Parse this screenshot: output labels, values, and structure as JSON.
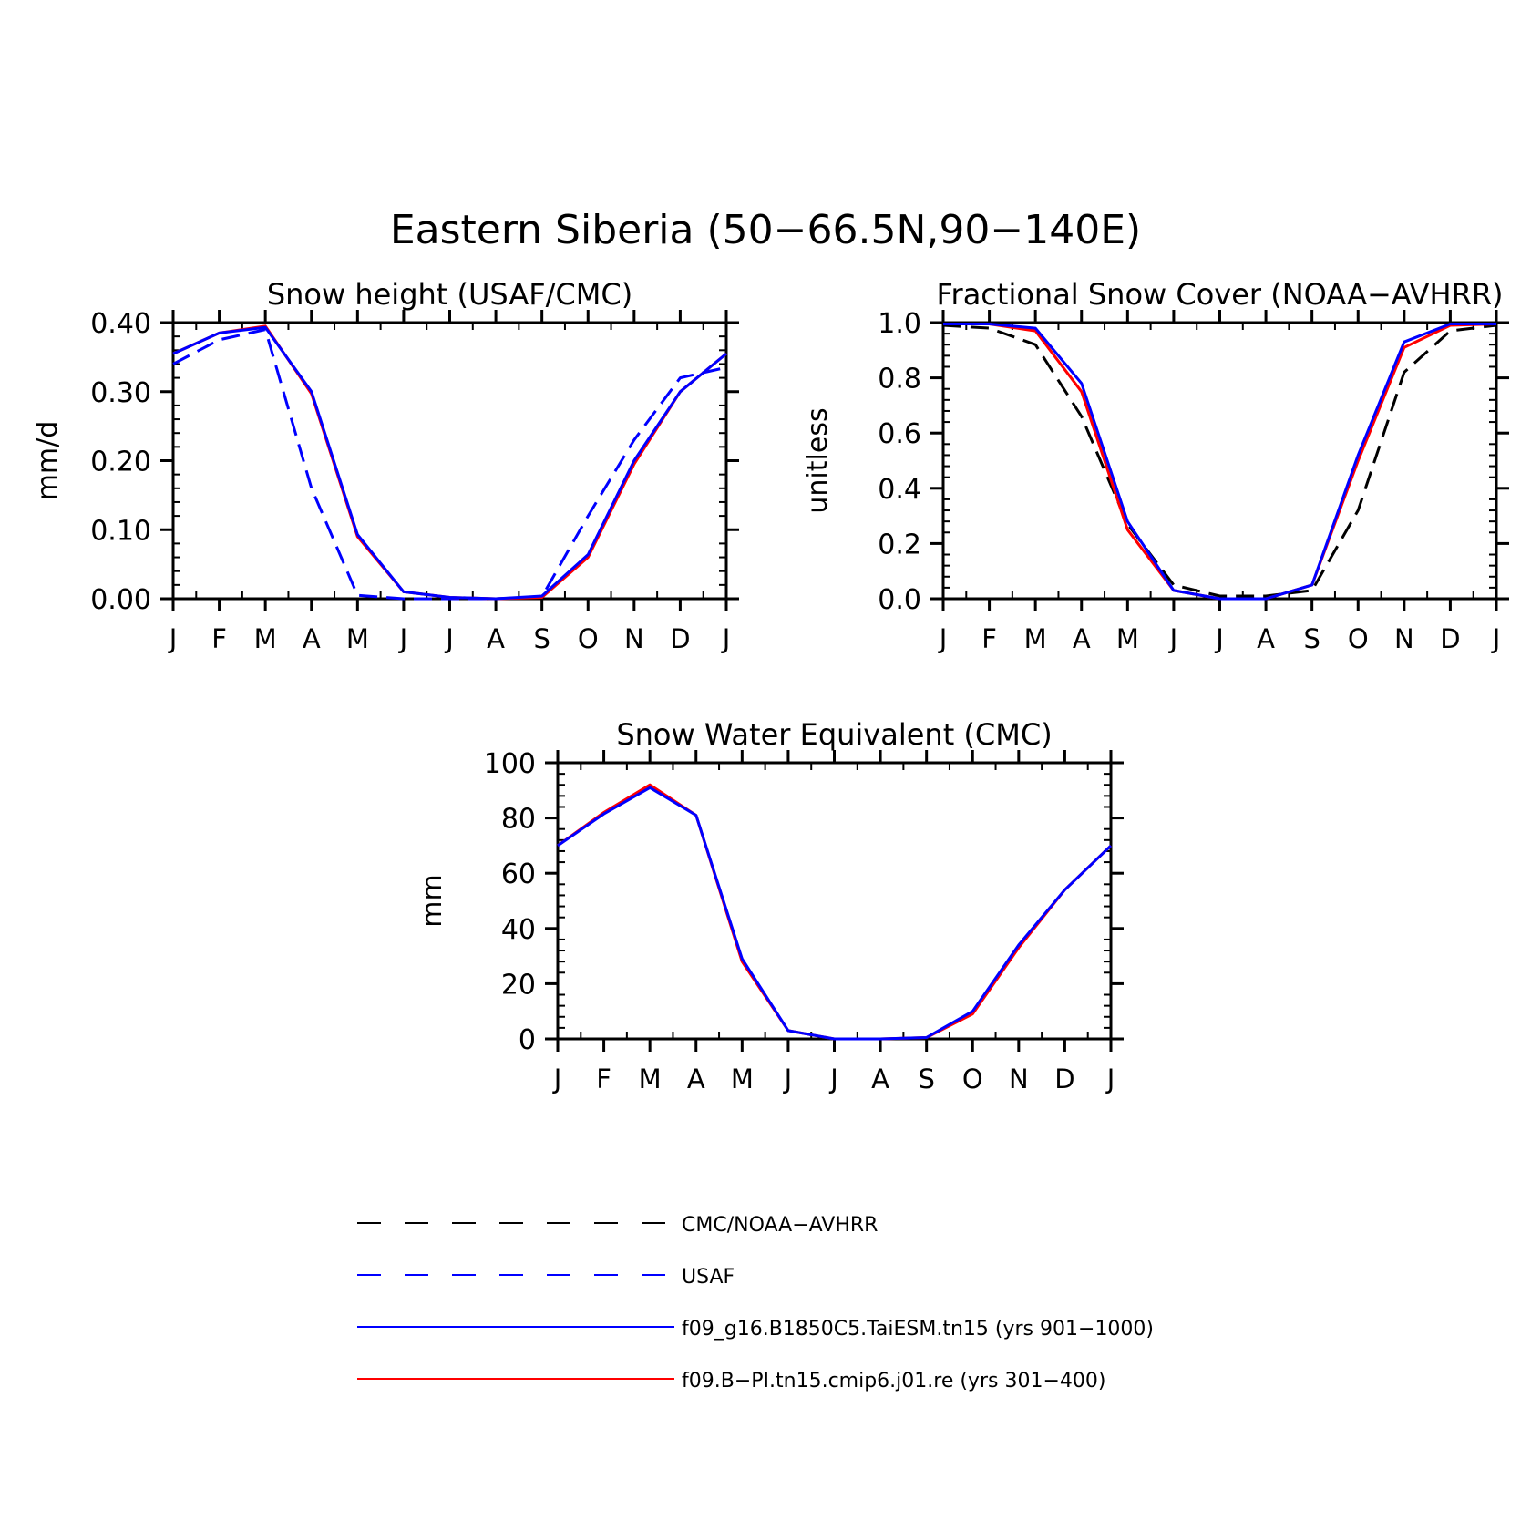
{
  "figure_title": "Eastern Siberia (50−66.5N,90−140E)",
  "colors": {
    "blue": "#0000ff",
    "red": "#ff0000",
    "black": "#000000"
  },
  "month_labels": [
    "J",
    "F",
    "M",
    "A",
    "M",
    "J",
    "J",
    "A",
    "S",
    "O",
    "N",
    "D",
    "J"
  ],
  "legend": [
    {
      "label": "CMC/NOAA−AVHRR",
      "color": "#000000",
      "style": "dashed"
    },
    {
      "label": "USAF",
      "color": "#0000ff",
      "style": "dashed"
    },
    {
      "label": "f09_g16.B1850C5.TaiESM.tn15 (yrs 901−1000)",
      "color": "#0000ff",
      "style": "solid"
    },
    {
      "label": "f09.B−PI.tn15.cmip6.j01.re (yrs 301−400)",
      "color": "#ff0000",
      "style": "solid"
    }
  ],
  "chart_data": [
    {
      "type": "line",
      "title": "Snow height (USAF/CMC)",
      "ylabel": "mm/d",
      "ylim": [
        0,
        0.4
      ],
      "yticks": [
        "0.00",
        "0.10",
        "0.20",
        "0.30",
        "0.40"
      ],
      "x": [
        "J",
        "F",
        "M",
        "A",
        "M",
        "J",
        "J",
        "A",
        "S",
        "O",
        "N",
        "D",
        "J"
      ],
      "series": [
        {
          "color": "#0000ff",
          "style": "dashed",
          "values": [
            0.34,
            0.375,
            0.39,
            0.16,
            0.005,
            0.0,
            0.0,
            0.0,
            0.003,
            0.12,
            0.23,
            0.32,
            0.335
          ]
        },
        {
          "color": "#ff0000",
          "style": "solid",
          "values": [
            0.355,
            0.385,
            0.395,
            0.297,
            0.09,
            0.01,
            0.002,
            0.0,
            0.002,
            0.06,
            0.195,
            0.3,
            0.355
          ]
        },
        {
          "color": "#0000ff",
          "style": "solid",
          "values": [
            0.355,
            0.385,
            0.393,
            0.3,
            0.093,
            0.01,
            0.002,
            0.0,
            0.004,
            0.064,
            0.2,
            0.3,
            0.355
          ]
        }
      ]
    },
    {
      "type": "line",
      "title": "Fractional Snow Cover (NOAA−AVHRR)",
      "ylabel": "unitless",
      "ylim": [
        0,
        1.0
      ],
      "yticks": [
        "0.0",
        "0.2",
        "0.4",
        "0.6",
        "0.8",
        "1.0"
      ],
      "x": [
        "J",
        "F",
        "M",
        "A",
        "M",
        "J",
        "J",
        "A",
        "S",
        "O",
        "N",
        "D",
        "J"
      ],
      "series": [
        {
          "color": "#000000",
          "style": "dashed",
          "values": [
            0.99,
            0.98,
            0.92,
            0.66,
            0.27,
            0.05,
            0.01,
            0.01,
            0.03,
            0.32,
            0.82,
            0.97,
            0.99
          ]
        },
        {
          "color": "#ff0000",
          "style": "solid",
          "values": [
            0.995,
            0.995,
            0.97,
            0.75,
            0.25,
            0.03,
            0.0,
            0.0,
            0.05,
            0.5,
            0.91,
            0.99,
            0.995
          ]
        },
        {
          "color": "#0000ff",
          "style": "solid",
          "values": [
            0.995,
            0.995,
            0.98,
            0.78,
            0.28,
            0.03,
            0.0,
            0.0,
            0.05,
            0.52,
            0.93,
            0.995,
            0.995
          ]
        }
      ]
    },
    {
      "type": "line",
      "title": "Snow Water Equivalent (CMC)",
      "ylabel": "mm",
      "ylim": [
        0,
        100
      ],
      "yticks": [
        "0",
        "20",
        "40",
        "60",
        "80",
        "100"
      ],
      "x": [
        "J",
        "F",
        "M",
        "A",
        "M",
        "J",
        "J",
        "A",
        "S",
        "O",
        "N",
        "D",
        "J"
      ],
      "series": [
        {
          "color": "#ff0000",
          "style": "solid",
          "values": [
            70,
            82,
            92,
            81,
            28,
            3,
            0,
            0,
            0.5,
            9,
            33,
            54,
            70
          ]
        },
        {
          "color": "#0000ff",
          "style": "solid",
          "values": [
            70,
            81.5,
            91,
            81,
            29,
            3,
            0,
            0,
            0.5,
            10,
            34,
            54,
            70
          ]
        }
      ]
    }
  ]
}
